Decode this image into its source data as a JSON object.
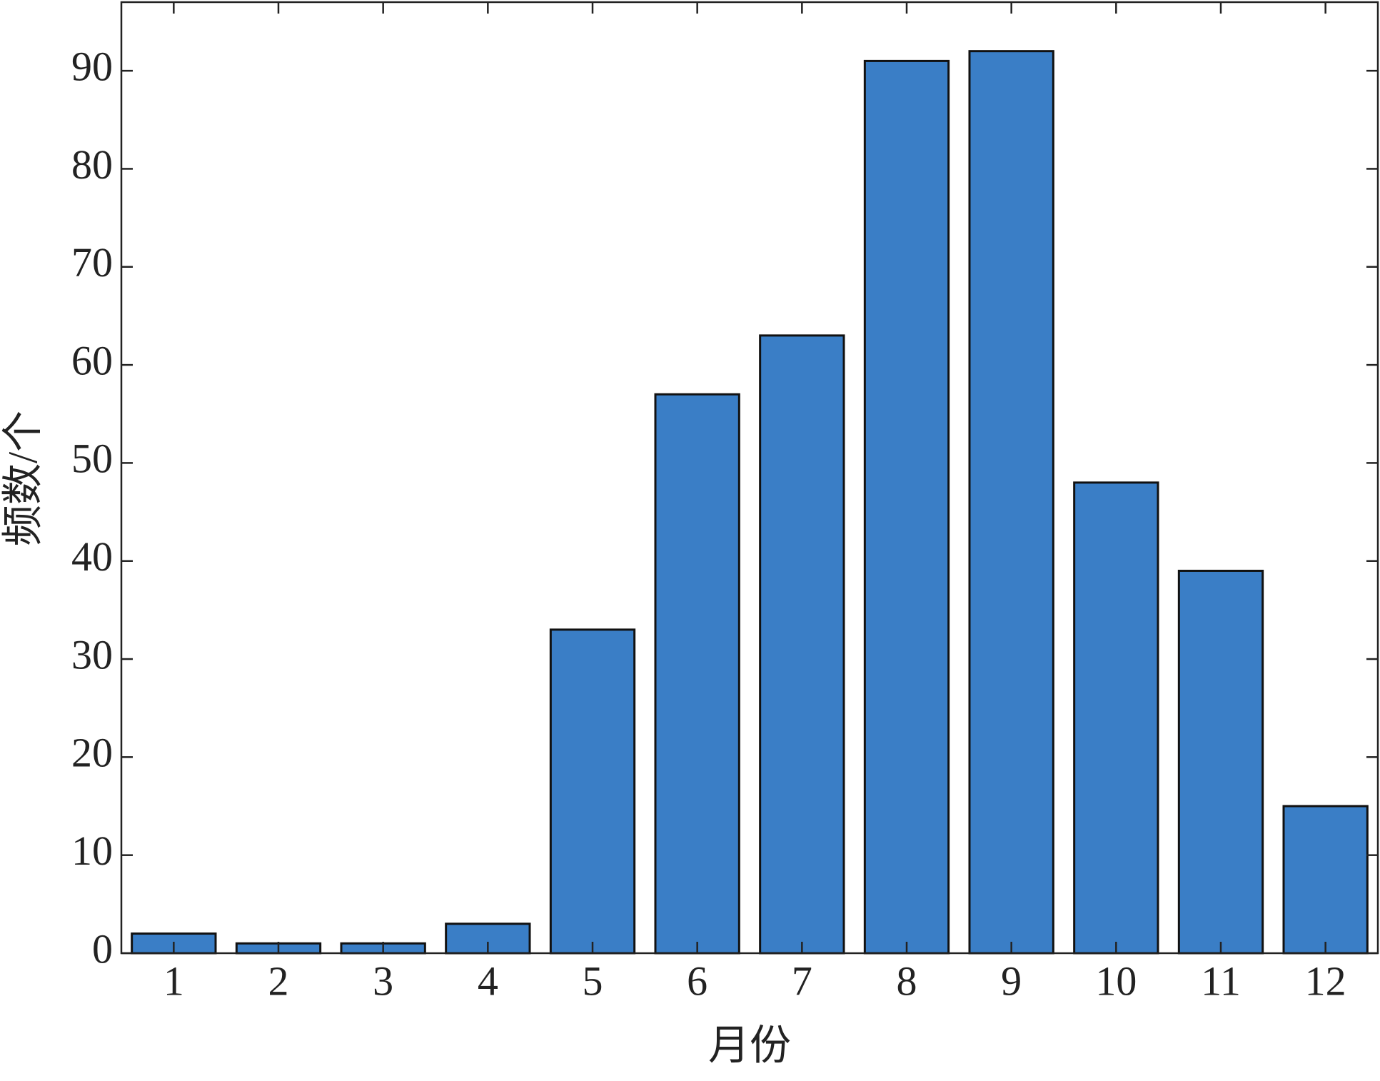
{
  "chart_data": {
    "type": "bar",
    "x_label": "月份",
    "y_label": "频数/个",
    "categories": [
      "1",
      "2",
      "3",
      "4",
      "5",
      "6",
      "7",
      "8",
      "9",
      "10",
      "11",
      "12"
    ],
    "values": [
      2,
      1,
      1,
      3,
      33,
      57,
      63,
      91,
      92,
      48,
      39,
      15
    ],
    "color": "#3a7ec6",
    "ylim": [
      0,
      97
    ],
    "yticks": [
      0,
      10,
      20,
      30,
      40,
      50,
      60,
      70,
      80,
      90
    ],
    "grid": false
  }
}
